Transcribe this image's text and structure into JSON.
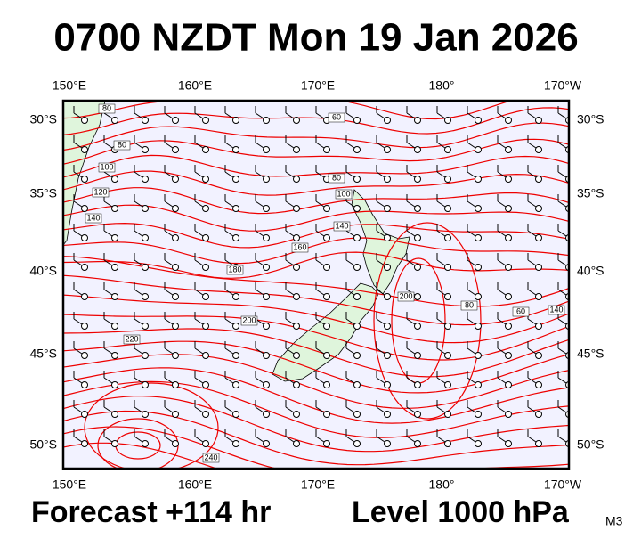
{
  "header": {
    "title": "0700 NZDT Mon 19 Jan 2026"
  },
  "axes": {
    "longitudes": [
      "150°E",
      "160°E",
      "170°E",
      "180°",
      "170°W"
    ],
    "latitudes": [
      "30°S",
      "35°S",
      "40°S",
      "45°S",
      "50°S"
    ]
  },
  "contour_labels": [
    "80",
    "80",
    "100",
    "120",
    "140",
    "60",
    "80",
    "100",
    "140",
    "160",
    "180",
    "200",
    "220",
    "240",
    "200",
    "80",
    "60",
    "140"
  ],
  "footer": {
    "forecast": "Forecast +114 hr",
    "level": "Level 1000 hPa",
    "model": "M3"
  }
}
